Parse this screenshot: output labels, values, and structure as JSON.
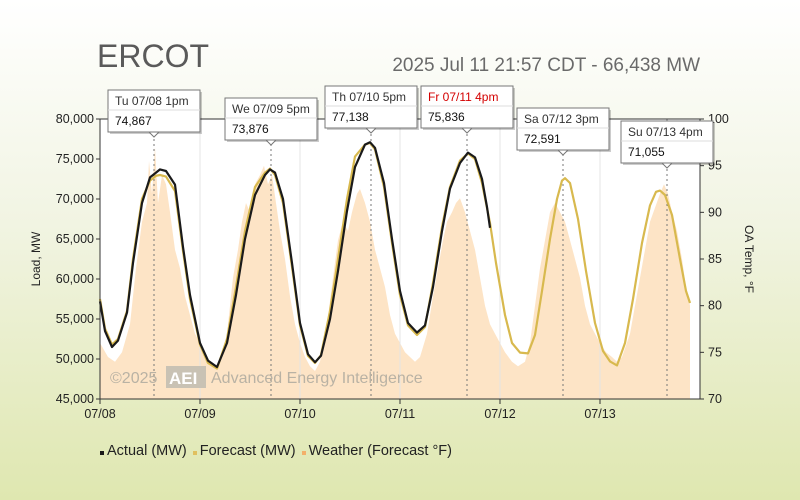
{
  "header": {
    "title": "ERCOT",
    "subtitle": "2025 Jul 11 21:57 CDT - 66,438 MW"
  },
  "watermark": {
    "year": "©2025",
    "logo": "AEI",
    "company": "Advanced Energy Intelligence"
  },
  "legend": {
    "items": [
      {
        "label": "Actual (MW)",
        "color": "#1a1a1a"
      },
      {
        "label": "Forecast (MW)",
        "color": "#e0c060"
      },
      {
        "label": "Weather (Forecast °F)",
        "color": "#f3b06a"
      }
    ]
  },
  "colors": {
    "actual": "#1a1a1a",
    "forecast": "#d8b94e",
    "weather_fill": "#fde4c6",
    "today_label": "#d40000"
  },
  "chart_data": {
    "type": "line",
    "title": "ERCOT",
    "ylabel": "Load, MW",
    "y2label": "OA Temp, °F",
    "ylim": [
      45000,
      80000
    ],
    "y2lim": [
      70,
      100
    ],
    "y_ticks": [
      "45,000",
      "50,000",
      "55,000",
      "60,000",
      "65,000",
      "70,000",
      "75,000",
      "80,000"
    ],
    "y2_ticks": [
      "70",
      "75",
      "80",
      "85",
      "90",
      "95",
      "100"
    ],
    "x_ticks": [
      "07/08",
      "07/09",
      "07/10",
      "07/11",
      "07/12",
      "07/13"
    ],
    "x_range_days": [
      0,
      6
    ],
    "series": [
      {
        "name": "Actual (MW)",
        "points": [
          [
            0,
            57200
          ],
          [
            0.05,
            53500
          ],
          [
            0.12,
            51500
          ],
          [
            0.18,
            52300
          ],
          [
            0.27,
            55800
          ],
          [
            0.33,
            62000
          ],
          [
            0.42,
            69500
          ],
          [
            0.5,
            72700
          ],
          [
            0.56,
            73300
          ],
          [
            0.6,
            73700
          ],
          [
            0.66,
            73500
          ],
          [
            0.75,
            71800
          ],
          [
            0.83,
            64000
          ],
          [
            0.9,
            58000
          ],
          [
            1.0,
            52000
          ],
          [
            1.08,
            49800
          ],
          [
            1.17,
            49000
          ],
          [
            1.27,
            52000
          ],
          [
            1.36,
            58000
          ],
          [
            1.45,
            65000
          ],
          [
            1.55,
            70500
          ],
          [
            1.65,
            73000
          ],
          [
            1.7,
            73700
          ],
          [
            1.75,
            73300
          ],
          [
            1.83,
            70000
          ],
          [
            1.92,
            62000
          ],
          [
            2.0,
            54500
          ],
          [
            2.08,
            50600
          ],
          [
            2.15,
            49600
          ],
          [
            2.21,
            50400
          ],
          [
            2.3,
            55000
          ],
          [
            2.38,
            61000
          ],
          [
            2.47,
            68500
          ],
          [
            2.55,
            74000
          ],
          [
            2.65,
            76800
          ],
          [
            2.7,
            77100
          ],
          [
            2.75,
            76400
          ],
          [
            2.84,
            72000
          ],
          [
            2.92,
            65000
          ],
          [
            3.0,
            58500
          ],
          [
            3.08,
            54500
          ],
          [
            3.17,
            53300
          ],
          [
            3.25,
            54200
          ],
          [
            3.33,
            59000
          ],
          [
            3.42,
            66000
          ],
          [
            3.5,
            71300
          ],
          [
            3.6,
            74500
          ],
          [
            3.68,
            75800
          ],
          [
            3.75,
            75200
          ],
          [
            3.82,
            72500
          ],
          [
            3.87,
            69000
          ],
          [
            3.9,
            66400
          ]
        ]
      },
      {
        "name": "Forecast (MW)",
        "points": [
          [
            0,
            57500
          ],
          [
            0.05,
            53800
          ],
          [
            0.12,
            51800
          ],
          [
            0.18,
            52500
          ],
          [
            0.27,
            56000
          ],
          [
            0.33,
            62500
          ],
          [
            0.42,
            70000
          ],
          [
            0.5,
            72300
          ],
          [
            0.56,
            72900
          ],
          [
            0.6,
            73000
          ],
          [
            0.66,
            72800
          ],
          [
            0.75,
            71000
          ],
          [
            0.83,
            63500
          ],
          [
            0.9,
            57500
          ],
          [
            1.0,
            51800
          ],
          [
            1.08,
            49500
          ],
          [
            1.17,
            48800
          ],
          [
            1.27,
            52500
          ],
          [
            1.36,
            59000
          ],
          [
            1.45,
            66000
          ],
          [
            1.55,
            71500
          ],
          [
            1.65,
            73300
          ],
          [
            1.7,
            73800
          ],
          [
            1.75,
            73000
          ],
          [
            1.83,
            69500
          ],
          [
            1.92,
            61500
          ],
          [
            2.0,
            54200
          ],
          [
            2.08,
            50400
          ],
          [
            2.15,
            49500
          ],
          [
            2.21,
            50500
          ],
          [
            2.3,
            56000
          ],
          [
            2.38,
            62500
          ],
          [
            2.47,
            70000
          ],
          [
            2.55,
            75300
          ],
          [
            2.65,
            76800
          ],
          [
            2.7,
            77000
          ],
          [
            2.75,
            76200
          ],
          [
            2.84,
            71500
          ],
          [
            2.92,
            64500
          ],
          [
            3.0,
            58000
          ],
          [
            3.08,
            54200
          ],
          [
            3.17,
            53000
          ],
          [
            3.25,
            54000
          ],
          [
            3.33,
            59500
          ],
          [
            3.42,
            66500
          ],
          [
            3.5,
            71500
          ],
          [
            3.6,
            74800
          ],
          [
            3.68,
            75700
          ],
          [
            3.75,
            75000
          ],
          [
            3.82,
            72000
          ],
          [
            3.9,
            67000
          ],
          [
            3.96,
            62000
          ],
          [
            4.05,
            55500
          ],
          [
            4.12,
            52000
          ],
          [
            4.2,
            50800
          ],
          [
            4.28,
            50700
          ],
          [
            4.35,
            53000
          ],
          [
            4.42,
            58500
          ],
          [
            4.5,
            65000
          ],
          [
            4.57,
            70000
          ],
          [
            4.62,
            72300
          ],
          [
            4.65,
            72600
          ],
          [
            4.7,
            72000
          ],
          [
            4.78,
            67500
          ],
          [
            4.86,
            61000
          ],
          [
            4.95,
            54500
          ],
          [
            5.03,
            51000
          ],
          [
            5.1,
            49700
          ],
          [
            5.17,
            49200
          ],
          [
            5.25,
            52000
          ],
          [
            5.33,
            57500
          ],
          [
            5.42,
            64500
          ],
          [
            5.5,
            69200
          ],
          [
            5.56,
            70900
          ],
          [
            5.6,
            71050
          ],
          [
            5.65,
            70500
          ],
          [
            5.72,
            68000
          ],
          [
            5.8,
            62500
          ],
          [
            5.86,
            58500
          ],
          [
            5.9,
            57000
          ]
        ]
      },
      {
        "name": "Weather (Forecast °F)",
        "points": [
          [
            0,
            76
          ],
          [
            0.08,
            74.5
          ],
          [
            0.15,
            74
          ],
          [
            0.22,
            75
          ],
          [
            0.3,
            78
          ],
          [
            0.36,
            84
          ],
          [
            0.42,
            89
          ],
          [
            0.47,
            91
          ],
          [
            0.49,
            95.5
          ],
          [
            0.52,
            92
          ],
          [
            0.55,
            97
          ],
          [
            0.58,
            91
          ],
          [
            0.62,
            94
          ],
          [
            0.66,
            93
          ],
          [
            0.7,
            90
          ],
          [
            0.75,
            86
          ],
          [
            0.8,
            84
          ],
          [
            0.85,
            81
          ],
          [
            0.9,
            79
          ],
          [
            0.95,
            77
          ],
          [
            1.0,
            76
          ],
          [
            1.05,
            75
          ],
          [
            1.1,
            74
          ],
          [
            1.15,
            73.5
          ],
          [
            1.2,
            74
          ],
          [
            1.27,
            77
          ],
          [
            1.33,
            83
          ],
          [
            1.38,
            86
          ],
          [
            1.42,
            89
          ],
          [
            1.46,
            91
          ],
          [
            1.5,
            90
          ],
          [
            1.55,
            93
          ],
          [
            1.6,
            94
          ],
          [
            1.64,
            95
          ],
          [
            1.68,
            93
          ],
          [
            1.72,
            94
          ],
          [
            1.76,
            91
          ],
          [
            1.8,
            88
          ],
          [
            1.85,
            85
          ],
          [
            1.9,
            81
          ],
          [
            1.95,
            78
          ],
          [
            2.0,
            76
          ],
          [
            2.05,
            74.5
          ],
          [
            2.1,
            73.5
          ],
          [
            2.15,
            73
          ],
          [
            2.2,
            74
          ],
          [
            2.27,
            78
          ],
          [
            2.33,
            83
          ],
          [
            2.38,
            87
          ],
          [
            2.43,
            89
          ],
          [
            2.48,
            88
          ],
          [
            2.52,
            90
          ],
          [
            2.57,
            92
          ],
          [
            2.6,
            92.5
          ],
          [
            2.65,
            91
          ],
          [
            2.7,
            89
          ],
          [
            2.75,
            86
          ],
          [
            2.8,
            84
          ],
          [
            2.85,
            82
          ],
          [
            2.9,
            79
          ],
          [
            2.95,
            77
          ],
          [
            3.0,
            76
          ],
          [
            3.05,
            75
          ],
          [
            3.1,
            74.5
          ],
          [
            3.15,
            74
          ],
          [
            3.2,
            74.5
          ],
          [
            3.27,
            77
          ],
          [
            3.33,
            81
          ],
          [
            3.38,
            84
          ],
          [
            3.43,
            87
          ],
          [
            3.47,
            89
          ],
          [
            3.52,
            90
          ],
          [
            3.56,
            91
          ],
          [
            3.6,
            91.5
          ],
          [
            3.65,
            90
          ],
          [
            3.7,
            88
          ],
          [
            3.75,
            86
          ],
          [
            3.8,
            83
          ],
          [
            3.85,
            80
          ],
          [
            3.9,
            78
          ],
          [
            3.95,
            77
          ],
          [
            4.0,
            76
          ],
          [
            4.05,
            75
          ],
          [
            4.12,
            74
          ],
          [
            4.18,
            73.5
          ],
          [
            4.25,
            74
          ],
          [
            4.3,
            76
          ],
          [
            4.35,
            80
          ],
          [
            4.4,
            84
          ],
          [
            4.45,
            87
          ],
          [
            4.5,
            90
          ],
          [
            4.55,
            91
          ],
          [
            4.6,
            90
          ],
          [
            4.65,
            89
          ],
          [
            4.7,
            87
          ],
          [
            4.75,
            85
          ],
          [
            4.8,
            83
          ],
          [
            4.85,
            80
          ],
          [
            4.9,
            78
          ],
          [
            4.95,
            77
          ],
          [
            5.0,
            76
          ],
          [
            5.06,
            75
          ],
          [
            5.12,
            74.5
          ],
          [
            5.17,
            74
          ],
          [
            5.22,
            74.5
          ],
          [
            5.3,
            77
          ],
          [
            5.35,
            80
          ],
          [
            5.4,
            83
          ],
          [
            5.45,
            86
          ],
          [
            5.5,
            89
          ],
          [
            5.55,
            90.5
          ],
          [
            5.6,
            92
          ],
          [
            5.64,
            93
          ],
          [
            5.68,
            92
          ],
          [
            5.72,
            90
          ],
          [
            5.77,
            88
          ],
          [
            5.82,
            85
          ],
          [
            5.86,
            82
          ],
          [
            5.9,
            80
          ]
        ]
      }
    ],
    "callouts": [
      {
        "day": "Tu 07/08 1pm",
        "value": "74,867",
        "x": 0.54,
        "y": 74867
      },
      {
        "day": "We 07/09 5pm",
        "value": "73,876",
        "x": 1.71,
        "y": 73876
      },
      {
        "day": "Th 07/10 5pm",
        "value": "77,138",
        "x": 2.71,
        "y": 77138
      },
      {
        "day": "Fr 07/11 4pm",
        "value": "75,836",
        "x": 3.67,
        "y": 75836,
        "today": true
      },
      {
        "day": "Sa 07/12 3pm",
        "value": "72,591",
        "x": 4.63,
        "y": 72591
      },
      {
        "day": "Su 07/13 4pm",
        "value": "71,055",
        "x": 5.67,
        "y": 71055
      }
    ]
  }
}
